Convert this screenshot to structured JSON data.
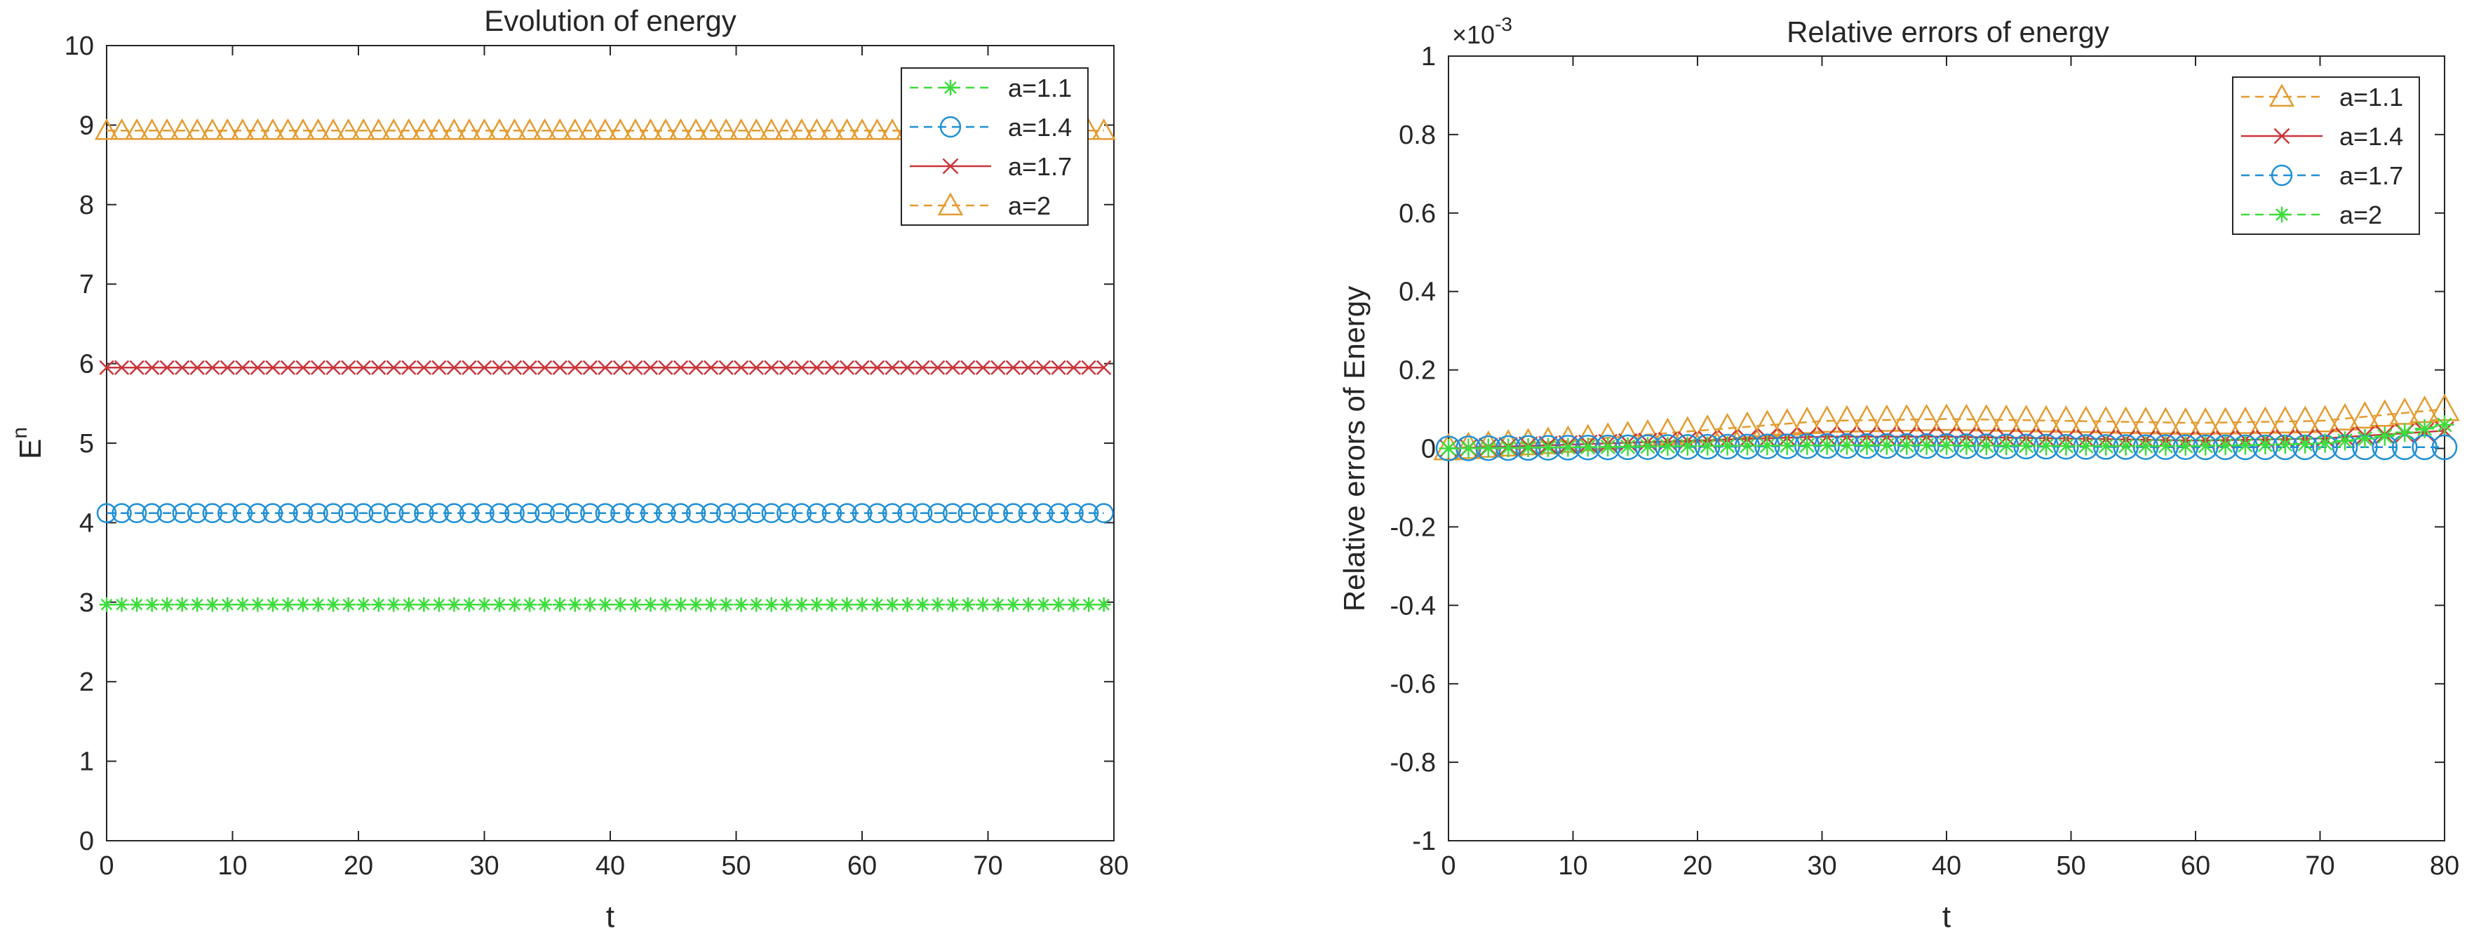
{
  "chart_data": [
    {
      "type": "line",
      "title": "Evolution of energy",
      "xlabel": "t",
      "ylabel": "E",
      "ylabel_sup": "n",
      "xlim": [
        0,
        80
      ],
      "ylim": [
        0,
        10
      ],
      "xticks": [
        0,
        10,
        20,
        30,
        40,
        50,
        60,
        70,
        80
      ],
      "xtick_labels": [
        "0",
        "10",
        "20",
        "30",
        "40",
        "50",
        "60",
        "70",
        "80"
      ],
      "yticks": [
        0,
        1,
        2,
        3,
        4,
        5,
        6,
        7,
        8,
        9,
        10
      ],
      "ytick_labels": [
        "0",
        "1",
        "2",
        "3",
        "4",
        "5",
        "6",
        "7",
        "8",
        "9",
        "10"
      ],
      "legend_position": "top-right",
      "marker_step": 1.2,
      "series": [
        {
          "name": "a=1.1",
          "color": "#3ddc3d",
          "dash": "dashed",
          "marker": "star",
          "x": [
            0,
            80
          ],
          "y": [
            2.97,
            2.97
          ]
        },
        {
          "name": "a=1.4",
          "color": "#1f8fd6",
          "dash": "dashed",
          "marker": "circle",
          "x": [
            0,
            80
          ],
          "y": [
            4.12,
            4.12
          ]
        },
        {
          "name": "a=1.7",
          "color": "#c9353a",
          "dash": "solid",
          "marker": "x",
          "x": [
            0,
            80
          ],
          "y": [
            5.95,
            5.95
          ]
        },
        {
          "name": "a=2",
          "color": "#e39b2f",
          "dash": "dashed",
          "marker": "triangle",
          "x": [
            0,
            80
          ],
          "y": [
            8.93,
            8.93
          ]
        }
      ]
    },
    {
      "type": "line",
      "title": "Relative errors of energy",
      "xlabel": "t",
      "ylabel": "Relative errors of Energy",
      "exponent_label": "×10",
      "exponent_value": "-3",
      "xlim": [
        0,
        80
      ],
      "ylim": [
        -1,
        1
      ],
      "xticks": [
        0,
        10,
        20,
        30,
        40,
        50,
        60,
        70,
        80
      ],
      "xtick_labels": [
        "0",
        "10",
        "20",
        "30",
        "40",
        "50",
        "60",
        "70",
        "80"
      ],
      "yticks": [
        -1,
        -0.8,
        -0.6,
        -0.4,
        -0.2,
        0,
        0.2,
        0.4,
        0.6,
        0.8,
        1
      ],
      "ytick_labels": [
        "-1",
        "-0.8",
        "-0.6",
        "-0.4",
        "-0.2",
        "0",
        "0.2",
        "0.4",
        "0.6",
        "0.8",
        "1"
      ],
      "legend_position": "top-right",
      "marker_step": 1.6,
      "series": [
        {
          "name": "a=1.1",
          "color": "#e39b2f",
          "dash": "dashed",
          "marker": "triangle",
          "x": [
            0,
            10,
            20,
            30,
            40,
            50,
            60,
            70,
            75,
            80
          ],
          "y": [
            0.0,
            0.02,
            0.045,
            0.07,
            0.075,
            0.07,
            0.065,
            0.07,
            0.085,
            0.1
          ]
        },
        {
          "name": "a=1.4",
          "color": "#c9353a",
          "dash": "solid",
          "marker": "x",
          "x": [
            0,
            10,
            20,
            30,
            40,
            50,
            60,
            70,
            75,
            80
          ],
          "y": [
            0.0,
            0.01,
            0.02,
            0.03,
            0.03,
            0.025,
            0.02,
            0.025,
            0.035,
            0.045
          ]
        },
        {
          "name": "a=1.7",
          "color": "#1f8fd6",
          "dash": "dashed",
          "marker": "circle",
          "x": [
            0,
            10,
            20,
            30,
            40,
            50,
            60,
            70,
            80
          ],
          "y": [
            0.0,
            0.002,
            0.004,
            0.006,
            0.006,
            0.004,
            0.003,
            0.003,
            0.003
          ]
        },
        {
          "name": "a=2",
          "color": "#3ddc3d",
          "dash": "dashed",
          "marker": "star",
          "x": [
            0,
            10,
            20,
            30,
            40,
            50,
            60,
            70,
            75,
            80
          ],
          "y": [
            0.0,
            0.003,
            0.006,
            0.008,
            0.008,
            0.006,
            0.006,
            0.012,
            0.03,
            0.06
          ]
        }
      ]
    }
  ]
}
